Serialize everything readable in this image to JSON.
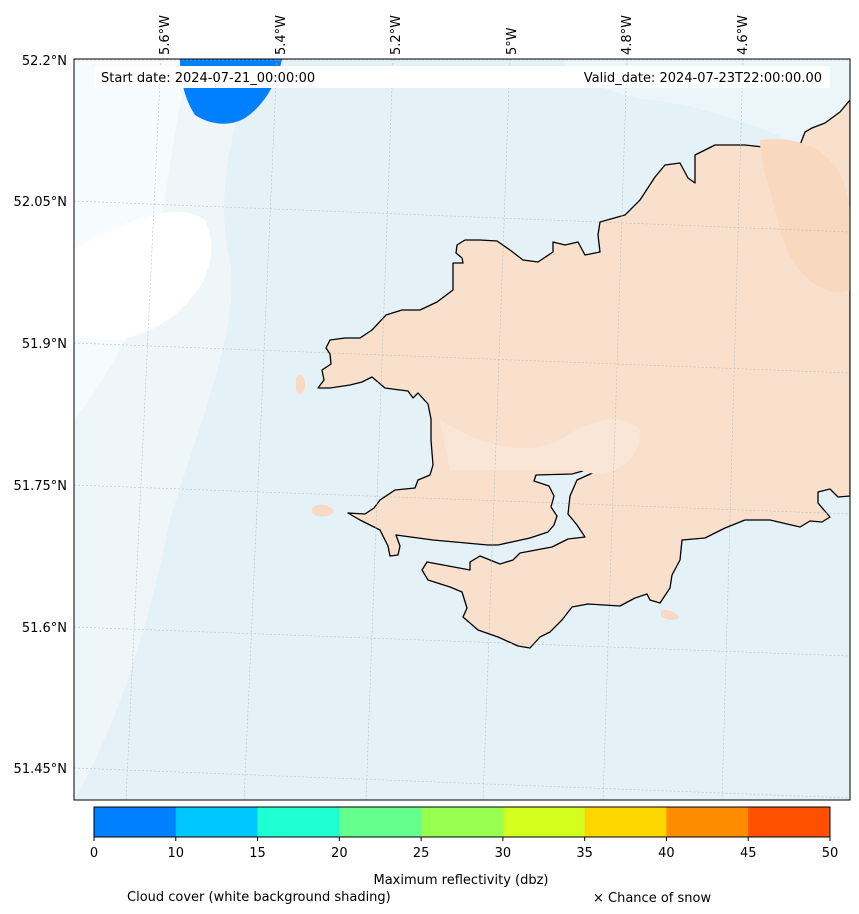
{
  "header": {
    "start_label": "Start date: 2024-07-21_00:00:00",
    "valid_label": "Valid_date: 2024-07-23T22:00:00.00"
  },
  "longitude_labels": [
    "5.6°W",
    "5.4°W",
    "5.2°W",
    "5°W",
    "4.8°W",
    "4.6°W"
  ],
  "latitude_labels": [
    "52.2°N",
    "52.05°N",
    "51.9°N",
    "51.75°N",
    "51.6°N",
    "51.45°N"
  ],
  "colorbar": {
    "label": "Maximum reflectivity (dbz)",
    "ticks": [
      "0",
      "10",
      "15",
      "20",
      "25",
      "30",
      "35",
      "40",
      "45",
      "50"
    ],
    "colors": [
      "#0080ff",
      "#00c8ff",
      "#1effd2",
      "#64ff8c",
      "#96ff50",
      "#d2ff1e",
      "#ffd700",
      "#ff8c00",
      "#ff5000"
    ]
  },
  "footer": {
    "cloud_label": "Cloud cover (white background shading)",
    "snow_label": "× Chance of snow"
  },
  "colors": {
    "sea": "#e2f0f6",
    "land": "#f9e0cc",
    "coast": "#000000",
    "reflectivity_blob": "#0080ff"
  }
}
